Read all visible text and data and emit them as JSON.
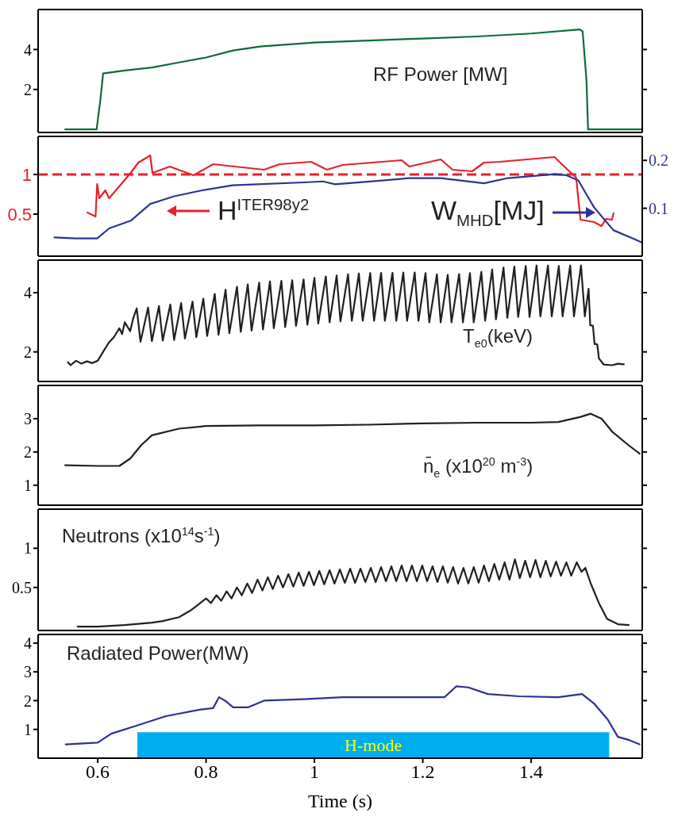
{
  "chart_data": [
    {
      "type": "line",
      "ylabel": "RF Power [MW]",
      "xlim": [
        0.49,
        1.605
      ],
      "xticks": [
        0.6,
        0.8,
        1,
        1.2,
        1.4
      ],
      "ylim": [
        -0.15,
        6
      ],
      "yticks": [
        2,
        4
      ],
      "tick_labels": "y",
      "series": [
        {
          "color": "#0d6b3a",
          "x": [
            0.54,
            0.598,
            0.605,
            0.61,
            0.65,
            0.7,
            0.75,
            0.8,
            0.85,
            0.9,
            1.0,
            1.1,
            1.2,
            1.3,
            1.4,
            1.49,
            1.495,
            1.502,
            1.505,
            1.605
          ],
          "values": [
            0,
            0,
            1.5,
            2.8,
            2.95,
            3.1,
            3.35,
            3.6,
            3.95,
            4.15,
            4.35,
            4.45,
            4.55,
            4.65,
            4.8,
            5.0,
            4.9,
            2.5,
            0,
            0
          ]
        }
      ]
    },
    {
      "type": "line",
      "ylabel": "H$^{ITER98y2}$",
      "y2label": "W$_{MHD}$[MJ]",
      "xlim": [
        0.49,
        1.605
      ],
      "xticks": [
        0.6,
        0.8,
        1,
        1.2,
        1.4
      ],
      "ylim": [
        -0.03,
        1.48
      ],
      "yticks": [
        0.5,
        1
      ],
      "y2lim": [
        0,
        0.25
      ],
      "y2ticks": [
        0.1,
        0.2
      ],
      "tick_labels": "y",
      "ref_lines": [
        {
          "axis": "y",
          "value": 1,
          "color": "#e8212a",
          "line_style": "dashed"
        }
      ],
      "series": [
        {
          "color": "#e8212a",
          "x": [
            0.581,
            0.596,
            0.599,
            0.603,
            0.614,
            0.621,
            0.661,
            0.675,
            0.697,
            0.701,
            0.733,
            0.777,
            0.813,
            0.907,
            0.936,
            0.994,
            1.023,
            1.052,
            1.161,
            1.175,
            1.233,
            1.255,
            1.291,
            1.313,
            1.342,
            1.443,
            1.458,
            1.483,
            1.491,
            1.516,
            1.53,
            1.538,
            1.549,
            1.552
          ],
          "values": [
            0.52,
            0.47,
            0.88,
            0.7,
            0.8,
            0.7,
            1.02,
            1.15,
            1.24,
            1.02,
            1.1,
            0.99,
            1.13,
            1.06,
            1.13,
            1.16,
            1.06,
            1.12,
            1.18,
            1.1,
            1.19,
            1.06,
            1.04,
            1.15,
            1.16,
            1.22,
            1.12,
            0.96,
            0.43,
            0.4,
            0.35,
            0.44,
            0.43,
            0.51
          ]
        },
        {
          "color": "#2b3590",
          "axis": "y2",
          "x": [
            0.52,
            0.559,
            0.599,
            0.621,
            0.661,
            0.697,
            0.741,
            0.791,
            0.849,
            0.98,
            1.016,
            1.038,
            1.125,
            1.175,
            1.233,
            1.313,
            1.357,
            1.443,
            1.465,
            1.487,
            1.516,
            1.552,
            1.588,
            1.605
          ],
          "values": [
            0.039,
            0.037,
            0.037,
            0.058,
            0.074,
            0.109,
            0.125,
            0.137,
            0.148,
            0.154,
            0.156,
            0.15,
            0.158,
            0.163,
            0.163,
            0.152,
            0.163,
            0.171,
            0.169,
            0.158,
            0.102,
            0.054,
            0.037,
            0.028
          ]
        }
      ]
    },
    {
      "type": "line",
      "ylabel": "T$_{e0}$(keV)",
      "xlim": [
        0.49,
        1.605
      ],
      "xticks": [
        0.6,
        0.8,
        1,
        1.2,
        1.4
      ],
      "ylim": [
        1,
        5.1
      ],
      "yticks": [
        2,
        4
      ],
      "tick_labels": "y",
      "series": [
        {
          "color": "#231f20",
          "x": [
            0.545,
            0.55,
            0.56,
            0.57,
            0.58,
            0.59,
            0.6,
            0.61,
            0.62,
            0.63,
            0.64,
            0.645,
            0.65,
            0.66,
            0.665,
            0.672,
            0.679,
            0.693,
            0.7,
            0.713,
            0.72,
            0.734,
            0.741,
            0.754,
            0.761,
            0.775,
            0.782,
            0.795,
            0.802,
            0.816,
            0.823,
            0.836,
            0.843,
            0.857,
            0.864,
            0.877,
            0.884,
            0.898,
            0.905,
            0.918,
            0.925,
            0.939,
            0.946,
            0.959,
            0.966,
            0.98,
            0.987,
            1.0,
            1.007,
            1.021,
            1.028,
            1.041,
            1.048,
            1.062,
            1.069,
            1.082,
            1.089,
            1.103,
            1.11,
            1.123,
            1.13,
            1.144,
            1.151,
            1.164,
            1.171,
            1.185,
            1.192,
            1.205,
            1.212,
            1.226,
            1.233,
            1.246,
            1.253,
            1.267,
            1.274,
            1.287,
            1.294,
            1.308,
            1.315,
            1.328,
            1.335,
            1.349,
            1.356,
            1.369,
            1.376,
            1.39,
            1.397,
            1.41,
            1.417,
            1.431,
            1.438,
            1.451,
            1.458,
            1.472,
            1.479,
            1.492,
            1.499,
            1.506,
            1.509,
            1.514,
            1.517,
            1.522,
            1.525,
            1.534,
            1.55,
            1.56,
            1.571
          ],
          "values": [
            1.65,
            1.55,
            1.7,
            1.6,
            1.68,
            1.62,
            1.7,
            2.0,
            2.3,
            2.5,
            2.8,
            2.6,
            3.0,
            2.7,
            3.1,
            3.47,
            2.34,
            3.5,
            2.36,
            3.55,
            2.38,
            3.6,
            2.4,
            3.65,
            2.45,
            3.7,
            2.5,
            3.8,
            2.54,
            3.96,
            2.58,
            4.1,
            2.63,
            4.2,
            2.68,
            4.28,
            2.72,
            4.34,
            2.76,
            4.38,
            2.8,
            4.4,
            2.84,
            4.42,
            2.88,
            4.45,
            2.92,
            4.5,
            2.96,
            4.55,
            3.0,
            4.58,
            3.03,
            4.62,
            3.05,
            4.65,
            3.05,
            4.66,
            3.05,
            4.67,
            3.05,
            4.67,
            3.05,
            4.68,
            3.05,
            4.68,
            3.05,
            4.66,
            3.0,
            4.62,
            3.0,
            4.6,
            3.0,
            4.63,
            3.0,
            4.66,
            3.0,
            4.7,
            3.05,
            4.78,
            3.1,
            4.85,
            3.15,
            4.88,
            3.18,
            4.9,
            3.18,
            4.92,
            3.2,
            4.92,
            3.2,
            4.9,
            3.2,
            4.92,
            3.2,
            4.92,
            3.2,
            4.13,
            2.9,
            2.88,
            2.27,
            2.25,
            1.78,
            1.57,
            1.55,
            1.6,
            1.58
          ]
        }
      ]
    },
    {
      "type": "line",
      "ylabel": "n̄$_{e}$ (x10$^{20}$ m$^{-3}$)",
      "xlim": [
        0.49,
        1.605
      ],
      "xticks": [
        0.6,
        0.8,
        1,
        1.2,
        1.4
      ],
      "ylim": [
        0.4,
        4
      ],
      "yticks": [
        1,
        2,
        3
      ],
      "tick_labels": "y",
      "series": [
        {
          "color": "#231f20",
          "x": [
            0.54,
            0.6,
            0.64,
            0.66,
            0.68,
            0.7,
            0.75,
            0.8,
            0.9,
            1.0,
            1.1,
            1.2,
            1.3,
            1.4,
            1.45,
            1.49,
            1.51,
            1.53,
            1.55,
            1.58,
            1.6
          ],
          "values": [
            1.6,
            1.58,
            1.58,
            1.8,
            2.2,
            2.5,
            2.7,
            2.78,
            2.8,
            2.8,
            2.82,
            2.86,
            2.88,
            2.88,
            2.9,
            3.05,
            3.15,
            3.0,
            2.6,
            2.2,
            1.95
          ]
        }
      ]
    },
    {
      "type": "line",
      "ylabel": "Neutrons (x10$^{14}$s$^{-1}$)",
      "xlim": [
        0.49,
        1.605
      ],
      "xticks": [
        0.6,
        0.8,
        1,
        1.2,
        1.4
      ],
      "ylim": [
        -0.05,
        1.5
      ],
      "yticks": [
        0.5,
        1
      ],
      "tick_labels": "y",
      "series": [
        {
          "color": "#231f20",
          "x": [
            0.563,
            0.6,
            0.65,
            0.7,
            0.72,
            0.75,
            0.77,
            0.78,
            0.8,
            0.809,
            0.819,
            0.828,
            0.838,
            0.847,
            0.857,
            0.866,
            0.876,
            0.885,
            0.895,
            0.904,
            0.914,
            0.923,
            0.933,
            0.942,
            0.952,
            0.961,
            0.971,
            0.98,
            0.99,
            0.999,
            1.009,
            1.018,
            1.028,
            1.037,
            1.047,
            1.056,
            1.066,
            1.075,
            1.085,
            1.094,
            1.104,
            1.113,
            1.123,
            1.132,
            1.142,
            1.151,
            1.161,
            1.17,
            1.18,
            1.189,
            1.199,
            1.208,
            1.218,
            1.227,
            1.237,
            1.246,
            1.256,
            1.265,
            1.275,
            1.284,
            1.294,
            1.303,
            1.313,
            1.322,
            1.332,
            1.341,
            1.351,
            1.36,
            1.37,
            1.379,
            1.389,
            1.398,
            1.408,
            1.417,
            1.427,
            1.436,
            1.446,
            1.455,
            1.465,
            1.474,
            1.484,
            1.493,
            1.5,
            1.51,
            1.525,
            1.54,
            1.56,
            1.58
          ],
          "values": [
            0,
            0,
            0.02,
            0.05,
            0.07,
            0.12,
            0.2,
            0.25,
            0.36,
            0.3,
            0.4,
            0.33,
            0.45,
            0.36,
            0.5,
            0.4,
            0.55,
            0.43,
            0.6,
            0.46,
            0.63,
            0.48,
            0.65,
            0.5,
            0.67,
            0.51,
            0.69,
            0.52,
            0.7,
            0.53,
            0.71,
            0.54,
            0.72,
            0.55,
            0.73,
            0.56,
            0.74,
            0.56,
            0.74,
            0.57,
            0.75,
            0.57,
            0.76,
            0.58,
            0.77,
            0.58,
            0.78,
            0.58,
            0.78,
            0.58,
            0.78,
            0.58,
            0.77,
            0.57,
            0.77,
            0.56,
            0.76,
            0.55,
            0.75,
            0.55,
            0.76,
            0.56,
            0.78,
            0.58,
            0.8,
            0.6,
            0.82,
            0.6,
            0.86,
            0.62,
            0.84,
            0.63,
            0.85,
            0.63,
            0.84,
            0.64,
            0.83,
            0.65,
            0.82,
            0.65,
            0.82,
            0.7,
            0.75,
            0.55,
            0.3,
            0.1,
            0.03,
            0.02
          ]
        }
      ]
    },
    {
      "type": "line",
      "ylabel": "Radiated Power(MW)",
      "xlabel": "Time (s)",
      "xlim": [
        0.49,
        1.605
      ],
      "xticks": [
        0.6,
        0.8,
        1,
        1.2,
        1.4
      ],
      "ylim": [
        0,
        4.3
      ],
      "yticks": [
        1,
        2,
        3,
        4
      ],
      "bands": [
        {
          "axis": "x",
          "from": 0.673,
          "to": 1.544,
          "label": "H-mode",
          "color": "#00aeef"
        }
      ],
      "series": [
        {
          "color": "#2e3192",
          "x": [
            0.541,
            0.6,
            0.625,
            0.675,
            0.726,
            0.79,
            0.813,
            0.824,
            0.835,
            0.85,
            0.878,
            0.907,
            0.98,
            1.052,
            1.197,
            1.24,
            1.262,
            1.284,
            1.32,
            1.378,
            1.45,
            1.494,
            1.516,
            1.541,
            1.56,
            1.581,
            1.6
          ],
          "values": [
            0.48,
            0.54,
            0.85,
            1.15,
            1.46,
            1.69,
            1.74,
            2.12,
            2.0,
            1.77,
            1.77,
            2.0,
            2.05,
            2.12,
            2.12,
            2.12,
            2.5,
            2.46,
            2.23,
            2.15,
            2.12,
            2.23,
            1.9,
            1.35,
            0.74,
            0.63,
            0.48
          ]
        }
      ]
    }
  ]
}
